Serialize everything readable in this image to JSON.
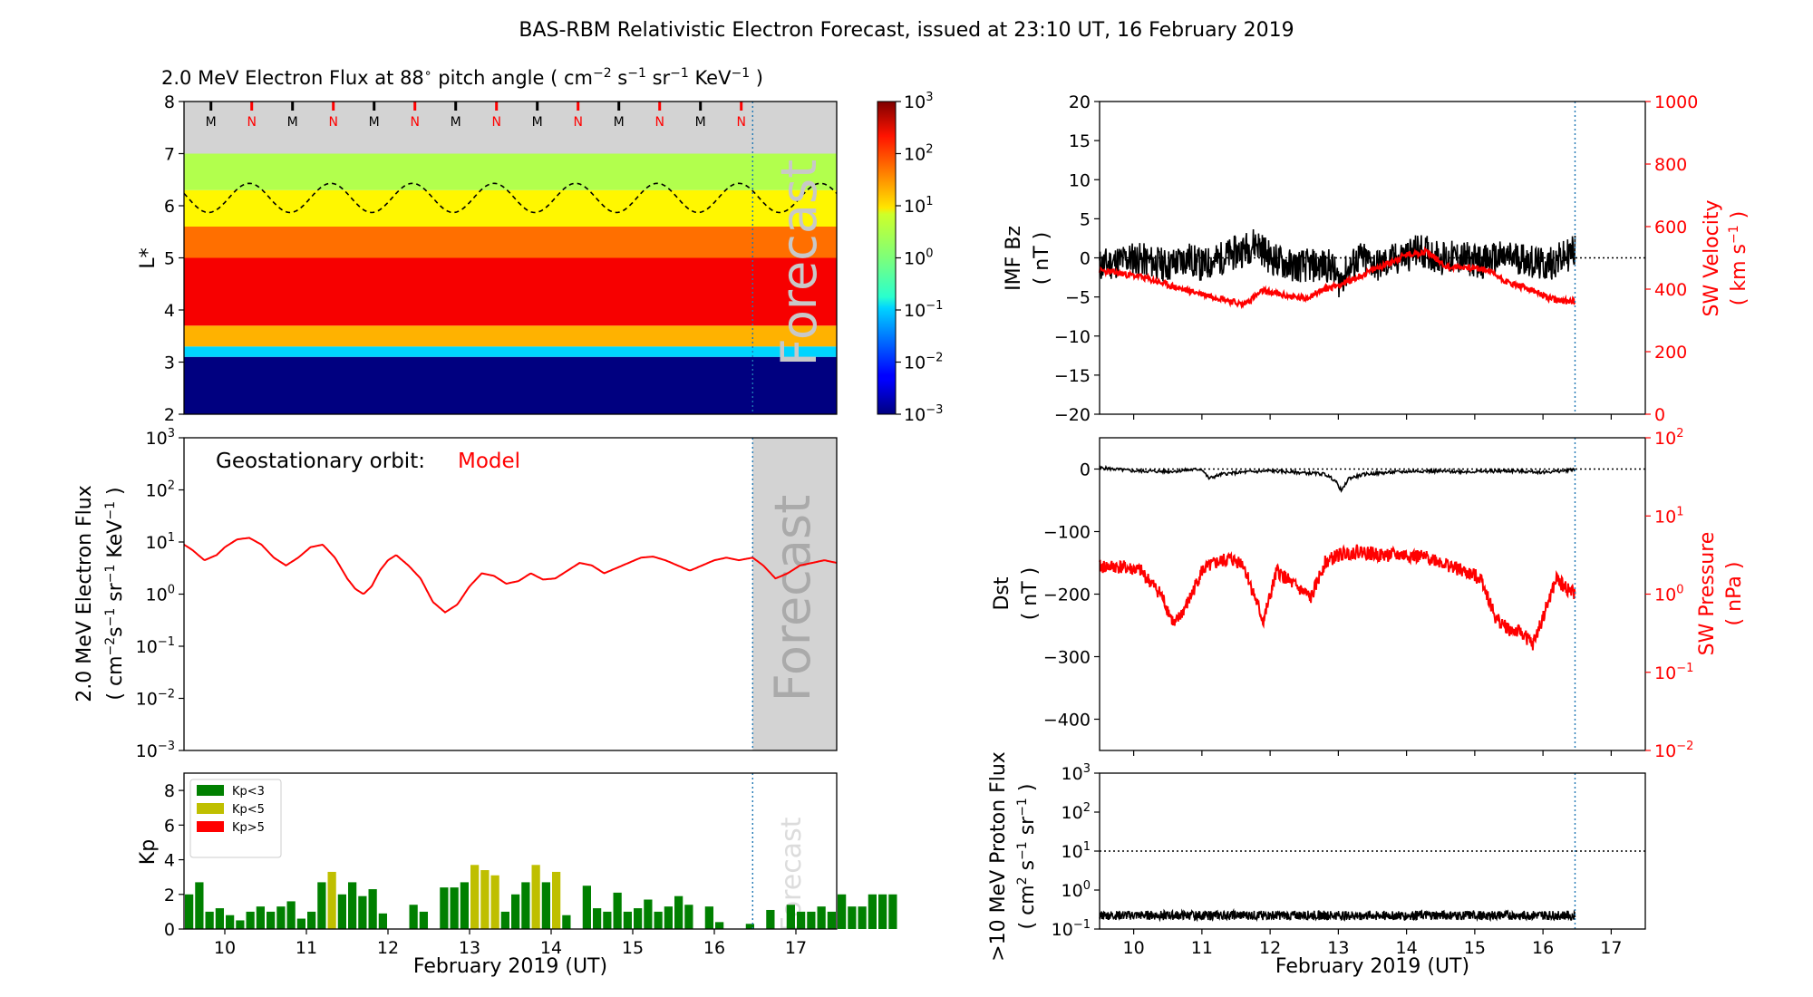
{
  "page": {
    "title": "BAS-RBM Relativistic Electron Forecast, issued at 23:10 UT, 16 February 2019"
  },
  "colors": {
    "red": "#ff0000",
    "black": "#000000",
    "forecast_grey": "#d3d3d3",
    "forecast_line": "#1f77b4",
    "kp_green": "#008000",
    "kp_yellow": "#bfbf00",
    "kp_red": "#ff0000"
  },
  "chart_data": [
    {
      "id": "lstar",
      "type": "heatmap",
      "title_parts": [
        "2.0 MeV Electron Flux at 88",
        "∘",
        " pitch angle ( cm",
        "−2",
        " s",
        "−1",
        " sr",
        "−1",
        " KeV",
        "−1",
        " )"
      ],
      "ylabel": "L*",
      "xlim": [
        9.5,
        17.5
      ],
      "ylim": [
        2,
        8
      ],
      "yticks": [
        2,
        3,
        4,
        5,
        6,
        7,
        8
      ],
      "forecast_start": 16.47,
      "forecast_label": "Forecast",
      "bands": [
        {
          "from": 2.0,
          "to": 3.1,
          "log_flux": -3
        },
        {
          "from": 3.1,
          "to": 3.3,
          "log_flux": -1
        },
        {
          "from": 3.3,
          "to": 3.7,
          "log_flux": 1.2
        },
        {
          "from": 3.7,
          "to": 5.0,
          "log_flux": 2.3
        },
        {
          "from": 5.0,
          "to": 5.6,
          "log_flux": 1.6
        },
        {
          "from": 5.6,
          "to": 6.3,
          "log_flux": 0.8
        },
        {
          "from": 6.3,
          "to": 7.0,
          "log_flux": 0.3
        }
      ],
      "dashed_contour": {
        "mean": 6.15,
        "amplitude": 0.28,
        "period_days": 1.0,
        "phase_day": 10.3
      },
      "mn_markers": [
        {
          "x": 9.83,
          "label": "M"
        },
        {
          "x": 10.33,
          "label": "N"
        },
        {
          "x": 10.83,
          "label": "M"
        },
        {
          "x": 11.33,
          "label": "N"
        },
        {
          "x": 11.83,
          "label": "M"
        },
        {
          "x": 12.33,
          "label": "N"
        },
        {
          "x": 12.83,
          "label": "M"
        },
        {
          "x": 13.33,
          "label": "N"
        },
        {
          "x": 13.83,
          "label": "M"
        },
        {
          "x": 14.33,
          "label": "N"
        },
        {
          "x": 14.83,
          "label": "M"
        },
        {
          "x": 15.33,
          "label": "N"
        },
        {
          "x": 15.83,
          "label": "M"
        },
        {
          "x": 16.33,
          "label": "N"
        }
      ],
      "colorbar": {
        "range_log": [
          -3,
          3
        ],
        "tick_bases": [
          "10",
          "10",
          "10",
          "10",
          "10",
          "10",
          "10"
        ],
        "tick_exps": [
          "3",
          "2",
          "1",
          "0",
          "−1",
          "−2",
          "−3"
        ]
      }
    },
    {
      "id": "geo",
      "type": "line",
      "yscale": "log",
      "ylim_log": [
        -3,
        3
      ],
      "xlim": [
        9.5,
        17.5
      ],
      "ytick_bases": [
        "10",
        "10",
        "10",
        "10",
        "10",
        "10",
        "10"
      ],
      "ytick_exps": [
        "3",
        "2",
        "1",
        "0",
        "−1",
        "−2",
        "−3"
      ],
      "ylabel_line1": "2.0 MeV Electron Flux",
      "ylabel_line2_parts": [
        "( cm",
        "−2",
        "s",
        "−1",
        " sr",
        "−1",
        " KeV",
        "−1",
        " )"
      ],
      "annotation": "Geostationary orbit:",
      "annotation_model": "Model",
      "forecast_label": "Forecast",
      "forecast_start": 16.47,
      "series": [
        {
          "name": "Model",
          "color": "#ff0000",
          "x": [
            9.5,
            9.6,
            9.75,
            9.9,
            10.0,
            10.15,
            10.3,
            10.45,
            10.6,
            10.75,
            10.9,
            11.05,
            11.2,
            11.35,
            11.5,
            11.6,
            11.7,
            11.8,
            11.9,
            12.0,
            12.1,
            12.25,
            12.4,
            12.55,
            12.7,
            12.85,
            13.0,
            13.15,
            13.3,
            13.45,
            13.6,
            13.75,
            13.9,
            14.05,
            14.2,
            14.35,
            14.5,
            14.65,
            14.8,
            14.95,
            15.1,
            15.25,
            15.4,
            15.55,
            15.7,
            15.85,
            16.0,
            16.15,
            16.3,
            16.47,
            16.6,
            16.75,
            16.9,
            17.05,
            17.2,
            17.35,
            17.5
          ],
          "log_y": [
            0.95,
            0.85,
            0.65,
            0.75,
            0.9,
            1.05,
            1.08,
            0.95,
            0.7,
            0.55,
            0.7,
            0.9,
            0.95,
            0.7,
            0.3,
            0.1,
            0.0,
            0.15,
            0.45,
            0.65,
            0.75,
            0.55,
            0.3,
            -0.15,
            -0.35,
            -0.2,
            0.15,
            0.4,
            0.35,
            0.2,
            0.25,
            0.4,
            0.28,
            0.3,
            0.45,
            0.6,
            0.55,
            0.4,
            0.5,
            0.6,
            0.7,
            0.72,
            0.65,
            0.55,
            0.45,
            0.55,
            0.65,
            0.7,
            0.65,
            0.7,
            0.55,
            0.3,
            0.4,
            0.55,
            0.6,
            0.65,
            0.6
          ]
        }
      ]
    },
    {
      "id": "kp",
      "type": "bar",
      "ylabel": "Kp",
      "ylim": [
        0,
        9
      ],
      "yticks": [
        0,
        2,
        4,
        6,
        8
      ],
      "xlim": [
        9.5,
        17.5
      ],
      "forecast_start": 16.47,
      "forecast_label": "Forecast",
      "legend": [
        {
          "label": "Kp<3",
          "color": "#008000"
        },
        {
          "label": "Kp<5",
          "color": "#bfbf00"
        },
        {
          "label": "Kp>5",
          "color": "#ff0000"
        }
      ],
      "bar_width_days": 0.125,
      "start_day": 9.5,
      "values": [
        2.0,
        2.7,
        1.0,
        1.2,
        0.8,
        0.5,
        1.0,
        1.3,
        1.0,
        1.3,
        1.6,
        0.6,
        1.0,
        2.7,
        3.3,
        2.0,
        2.7,
        1.9,
        2.3,
        0.9,
        0.0,
        0.0,
        1.4,
        1.0,
        0.0,
        2.4,
        2.4,
        2.7,
        3.7,
        3.4,
        3.1,
        1.0,
        2.0,
        2.7,
        3.7,
        2.7,
        3.3,
        0.8,
        0.0,
        2.5,
        1.2,
        1.0,
        2.1,
        1.0,
        1.2,
        1.7,
        1.0,
        1.3,
        1.9,
        1.4,
        0.0,
        1.3,
        0.4,
        0.0,
        0.0,
        0.3,
        0.0,
        1.1,
        0.0,
        1.4,
        1.0,
        1.0,
        1.3,
        1.0,
        2.0,
        1.3,
        1.3,
        2.0,
        2.0,
        2.0
      ]
    },
    {
      "id": "imf",
      "type": "line",
      "xlim": [
        9.5,
        17.5
      ],
      "ylim_left": [
        -20,
        20
      ],
      "ylim_right": [
        0,
        1000
      ],
      "yticks_left": [
        20,
        15,
        10,
        5,
        0,
        -5,
        -10,
        -15,
        -20
      ],
      "ytick_labels_left": [
        "20",
        "15",
        "10",
        "5",
        "0",
        "−5",
        "−10",
        "−15",
        "−20"
      ],
      "yticks_right": [
        0,
        200,
        400,
        600,
        800,
        1000
      ],
      "ylabel_left_1": "IMF Bz",
      "ylabel_left_2": "( nT )",
      "ylabel_right_1": "SW Velocity",
      "ylabel_right_2_parts": [
        "( km s",
        "−1",
        " )"
      ],
      "forecast_start": 16.47,
      "series": [
        {
          "name": "IMF Bz",
          "color": "#000000",
          "noise": 2.2,
          "seed": 11,
          "x": [
            9.5,
            10.0,
            10.5,
            10.8,
            11.0,
            11.3,
            11.6,
            11.8,
            12.0,
            12.3,
            12.6,
            12.9,
            13.0,
            13.3,
            13.6,
            13.9,
            14.2,
            14.5,
            14.8,
            15.1,
            15.4,
            15.7,
            16.0,
            16.3,
            16.47
          ],
          "y": [
            -1,
            0,
            -1,
            0,
            -1,
            0,
            1,
            2,
            0,
            -1,
            -1,
            -1,
            -3,
            0,
            -1,
            0,
            1,
            0,
            0,
            -0.5,
            0,
            0,
            -1,
            0,
            1
          ]
        },
        {
          "name": "SW Velocity",
          "color": "#ff0000",
          "noise": 10,
          "seed": 23,
          "x": [
            9.5,
            9.8,
            10.1,
            10.4,
            10.7,
            11.0,
            11.3,
            11.6,
            11.9,
            12.2,
            12.5,
            12.8,
            13.1,
            13.4,
            13.7,
            14.0,
            14.3,
            14.6,
            14.9,
            15.2,
            15.5,
            15.8,
            16.1,
            16.3,
            16.47
          ],
          "y": [
            460,
            450,
            440,
            420,
            400,
            385,
            370,
            350,
            395,
            380,
            370,
            400,
            420,
            450,
            480,
            510,
            520,
            470,
            470,
            460,
            420,
            400,
            370,
            360,
            365
          ]
        }
      ]
    },
    {
      "id": "dst",
      "type": "line",
      "xlim": [
        9.5,
        17.5
      ],
      "ylim_left": [
        -450,
        50
      ],
      "ylim_right_log": [
        -2,
        2
      ],
      "yticks_left": [
        0,
        -100,
        -200,
        -300,
        -400
      ],
      "ytick_labels_left": [
        "0",
        "−100",
        "−200",
        "−300",
        "−400"
      ],
      "ytick_bases_right": [
        "10",
        "10",
        "10",
        "10",
        "10"
      ],
      "ytick_exps_right": [
        "2",
        "1",
        "0",
        "−1",
        "−2"
      ],
      "ylabel_left_1": "Dst",
      "ylabel_left_2": "( nT )",
      "ylabel_right_1": "SW Pressure",
      "ylabel_right_2": "( nPa )",
      "forecast_start": 16.47,
      "series": [
        {
          "name": "Dst",
          "color": "#000000",
          "noise": 2.5,
          "seed": 5,
          "x": [
            9.5,
            10.0,
            10.5,
            11.0,
            11.1,
            11.3,
            11.6,
            12.0,
            12.5,
            12.8,
            12.95,
            13.05,
            13.15,
            13.4,
            13.8,
            14.2,
            14.6,
            15.0,
            15.5,
            16.0,
            16.3,
            16.47
          ],
          "y": [
            2,
            -3,
            -4,
            0,
            -15,
            -8,
            -5,
            -3,
            -6,
            -8,
            -18,
            -35,
            -15,
            -8,
            -5,
            -3,
            -4,
            -4,
            -3,
            -5,
            -3,
            0
          ]
        },
        {
          "name": "SW Pressure",
          "color": "#ff0000",
          "noise": 0.09,
          "seed": 41,
          "x": [
            9.5,
            9.8,
            10.1,
            10.4,
            10.6,
            10.8,
            11.0,
            11.2,
            11.4,
            11.6,
            11.8,
            11.9,
            12.1,
            12.3,
            12.6,
            12.8,
            13.0,
            13.3,
            13.6,
            14.0,
            14.4,
            14.8,
            15.1,
            15.3,
            15.5,
            15.7,
            15.85,
            16.0,
            16.2,
            16.3,
            16.47
          ],
          "log_y": [
            0.35,
            0.35,
            0.3,
            0.0,
            -0.4,
            -0.1,
            0.3,
            0.4,
            0.45,
            0.4,
            -0.1,
            -0.35,
            0.3,
            0.15,
            -0.05,
            0.4,
            0.5,
            0.55,
            0.5,
            0.5,
            0.45,
            0.3,
            0.2,
            -0.3,
            -0.45,
            -0.5,
            -0.65,
            -0.3,
            0.2,
            0.1,
            0.0
          ]
        }
      ]
    },
    {
      "id": "proton",
      "type": "line",
      "yscale": "log",
      "xlim": [
        9.5,
        17.5
      ],
      "ylim_log": [
        -1,
        3
      ],
      "ytick_bases": [
        "10",
        "10",
        "10",
        "10",
        "10"
      ],
      "ytick_exps": [
        "3",
        "2",
        "1",
        "0",
        "−1"
      ],
      "ylabel_line1": ">10 MeV Proton Flux",
      "ylabel_line2_parts": [
        "( cm",
        "2",
        " s",
        "−1",
        " sr",
        "−1",
        " )"
      ],
      "threshold_log": 1,
      "forecast_start": 16.47,
      "series": [
        {
          "name": ">10 MeV Proton Flux",
          "color": "#000000",
          "noise": 0.12,
          "seed": 77,
          "x": [
            9.5,
            16.47
          ],
          "log_y": [
            -0.65,
            -0.65
          ]
        }
      ]
    }
  ],
  "x_axis": {
    "xlabel": "February 2019 (UT)",
    "ticks": [
      10,
      11,
      12,
      13,
      14,
      15,
      16,
      17
    ]
  }
}
